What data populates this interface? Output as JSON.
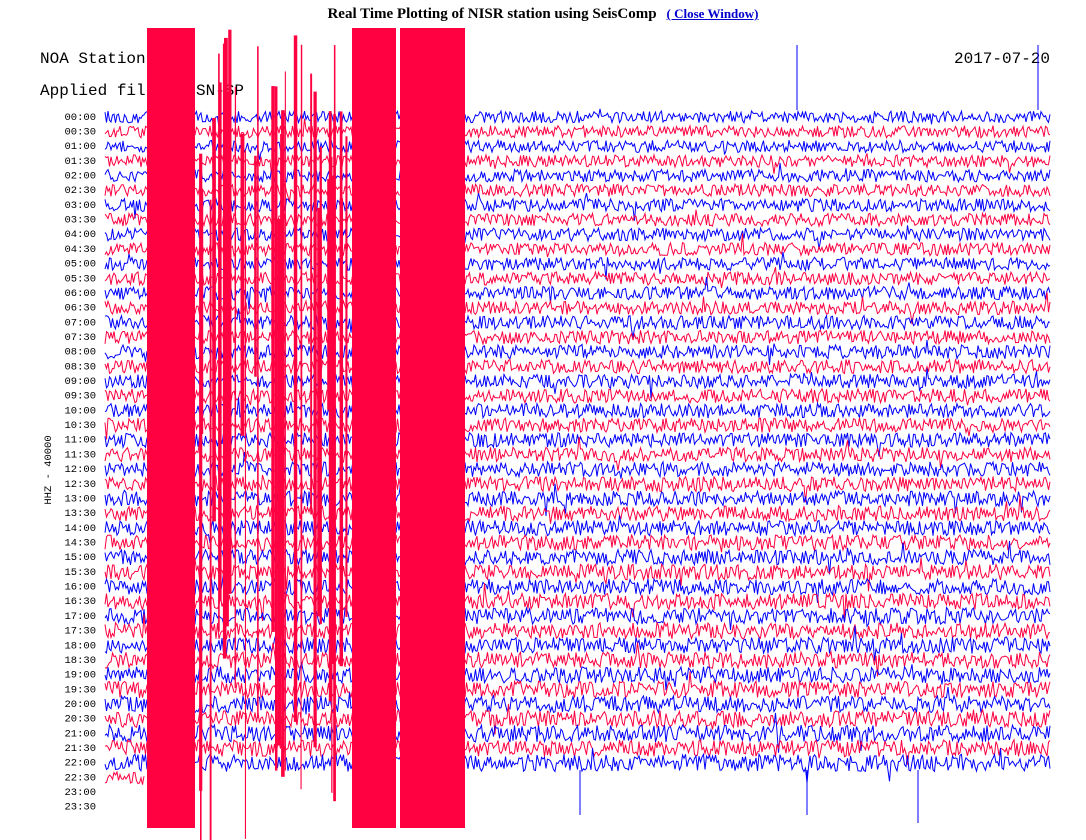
{
  "header": {
    "title": "Real Time Plotting of NISR station using SeisComp",
    "link": "( Close Window)"
  },
  "plot": {
    "station": "NOA Station",
    "date": "2017-07-20",
    "filter_left": "Applied filter",
    "filter_right": "SN-SP",
    "channel": "HHZ - 40000",
    "times": [
      "00:00",
      "00:30",
      "01:00",
      "01:30",
      "02:00",
      "02:30",
      "03:00",
      "03:30",
      "04:00",
      "04:30",
      "05:00",
      "05:30",
      "06:00",
      "06:30",
      "07:00",
      "07:30",
      "08:00",
      "08:30",
      "09:00",
      "09:30",
      "10:00",
      "10:30",
      "11:00",
      "11:30",
      "12:00",
      "12:30",
      "13:00",
      "13:30",
      "14:00",
      "14:30",
      "15:00",
      "15:30",
      "16:00",
      "16:30",
      "17:00",
      "17:30",
      "18:00",
      "18:30",
      "19:00",
      "19:30",
      "20:00",
      "20:30",
      "21:00",
      "21:30",
      "22:00",
      "22:30",
      "23:00",
      "23:30"
    ]
  }
}
